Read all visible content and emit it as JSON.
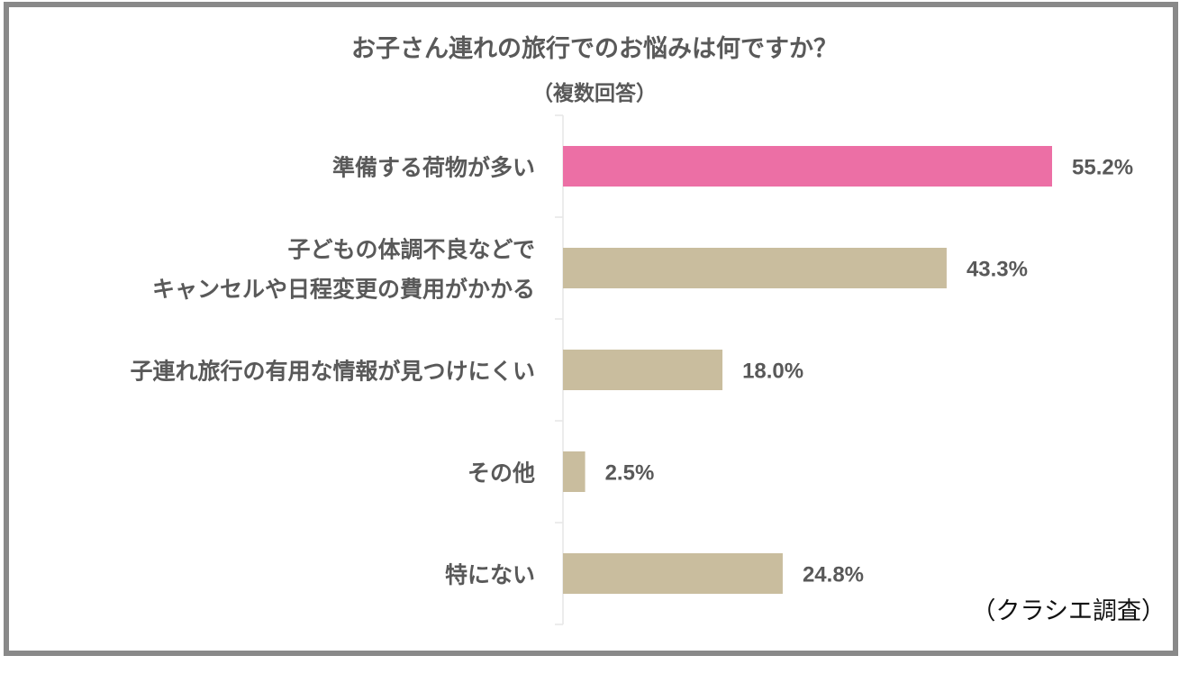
{
  "chart_data": {
    "type": "bar",
    "orientation": "horizontal",
    "title": "お子さん連れの旅行でのお悩みは何ですか？",
    "subtitle": "（複数回答）",
    "categories": [
      [
        "準備する荷物が多い"
      ],
      [
        "子どもの体調不良などで",
        "キャンセルや日程変更の費用がかかる"
      ],
      [
        "子連れ旅行の有用な情報が見つけにくい"
      ],
      [
        "その他"
      ],
      [
        "特にない"
      ]
    ],
    "values": [
      55.2,
      43.3,
      18.0,
      2.5,
      24.8
    ],
    "value_labels": [
      "55.2%",
      "43.3%",
      "18.0%",
      "2.5%",
      "24.8%"
    ],
    "unit": "%",
    "xlim": [
      0,
      55.2
    ],
    "grid": false,
    "colors": {
      "highlight": "#EC6FA5",
      "default": "#C9BD9E",
      "text": "#595959",
      "frame": "#898989",
      "axis": "#E6E6E6"
    },
    "highlight_index": 0,
    "source": "（クラシエ調査）"
  }
}
